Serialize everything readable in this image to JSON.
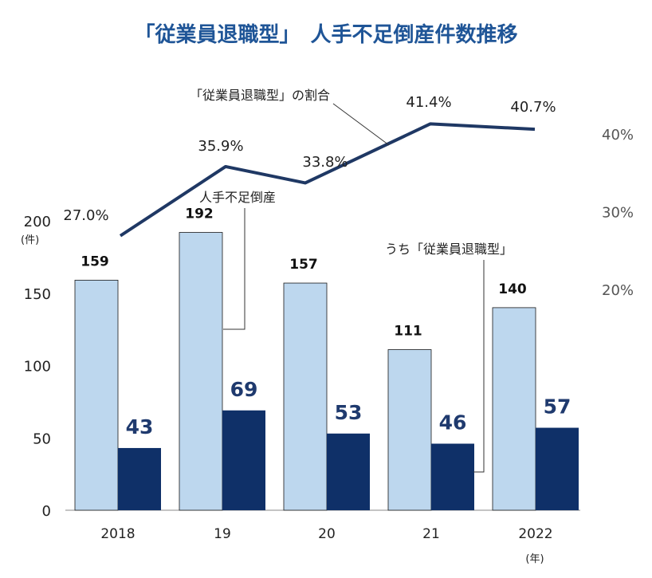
{
  "chart_data": {
    "type": "bar",
    "title": "「従業員退職型」　人手不足倒産件数推移",
    "categories": [
      "2018",
      "19",
      "20",
      "21",
      "2022"
    ],
    "x_unit": "(年)",
    "y_unit": "(件)",
    "ylim": [
      0,
      200
    ],
    "yticks": [
      "0",
      "50",
      "100",
      "150",
      "200"
    ],
    "series": [
      {
        "name": "人手不足倒産",
        "values": [
          159,
          192,
          157,
          111,
          140
        ],
        "color": "#bdd7ee"
      },
      {
        "name": "うち「従業員退職型」",
        "values": [
          43,
          69,
          53,
          46,
          57
        ],
        "color": "#0f3068"
      }
    ],
    "line_series": {
      "name": "「従業員退職型」の割合",
      "values": [
        27.0,
        35.9,
        33.8,
        41.4,
        40.7
      ],
      "labels": [
        "27.0%",
        "35.9%",
        "33.8%",
        "41.4%",
        "40.7%"
      ],
      "color": "#1f3864"
    },
    "secondary_axis": {
      "ylim": [
        10,
        50
      ],
      "ticks": [
        20,
        30,
        40
      ],
      "tick_labels": [
        "20%",
        "30%",
        "40%"
      ]
    },
    "grid": false
  }
}
